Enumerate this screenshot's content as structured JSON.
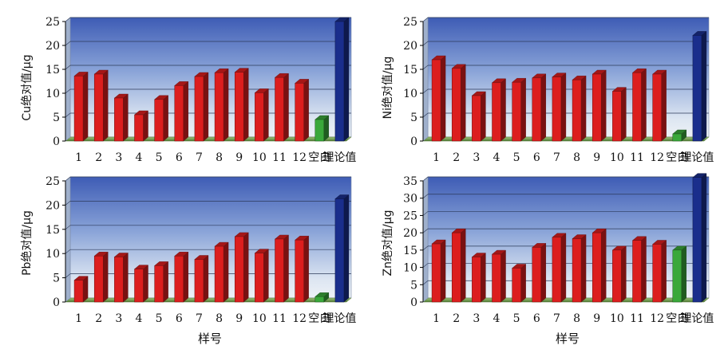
{
  "chart_data": [
    {
      "type": "bar",
      "ylabel": "Cu绝对值/μg",
      "xlabel": "",
      "ylim": [
        0,
        25
      ],
      "yticks": [
        0,
        5,
        10,
        15,
        20,
        25
      ],
      "categories": [
        "1",
        "2",
        "3",
        "4",
        "5",
        "6",
        "7",
        "8",
        "9",
        "10",
        "11",
        "12",
        "空白",
        "理论值"
      ],
      "values": [
        13.6,
        14.0,
        9.0,
        5.5,
        8.7,
        11.6,
        13.5,
        14.3,
        14.4,
        10.1,
        13.3,
        12.1,
        4.5,
        25.0
      ],
      "colors": [
        "#dc1e1e",
        "#dc1e1e",
        "#dc1e1e",
        "#dc1e1e",
        "#dc1e1e",
        "#dc1e1e",
        "#dc1e1e",
        "#dc1e1e",
        "#dc1e1e",
        "#dc1e1e",
        "#dc1e1e",
        "#dc1e1e",
        "#3aa83a",
        "#1a2e8c"
      ]
    },
    {
      "type": "bar",
      "ylabel": "Ni绝对值/μg",
      "xlabel": "",
      "ylim": [
        0,
        25
      ],
      "yticks": [
        0,
        5,
        10,
        15,
        20,
        25
      ],
      "categories": [
        "1",
        "2",
        "3",
        "4",
        "5",
        "6",
        "7",
        "8",
        "9",
        "10",
        "11",
        "12",
        "空白",
        "理论值"
      ],
      "values": [
        17.0,
        15.2,
        9.5,
        12.2,
        12.3,
        13.2,
        13.4,
        12.8,
        14.0,
        10.4,
        14.3,
        14.0,
        1.5,
        22.1
      ],
      "colors": [
        "#dc1e1e",
        "#dc1e1e",
        "#dc1e1e",
        "#dc1e1e",
        "#dc1e1e",
        "#dc1e1e",
        "#dc1e1e",
        "#dc1e1e",
        "#dc1e1e",
        "#dc1e1e",
        "#dc1e1e",
        "#dc1e1e",
        "#3aa83a",
        "#1a2e8c"
      ]
    },
    {
      "type": "bar",
      "ylabel": "Pb绝对值/μg",
      "xlabel": "样号",
      "ylim": [
        0,
        25
      ],
      "yticks": [
        0,
        5,
        10,
        15,
        20,
        25
      ],
      "categories": [
        "1",
        "2",
        "3",
        "4",
        "5",
        "6",
        "7",
        "8",
        "9",
        "10",
        "11",
        "12",
        "空白",
        "理论值"
      ],
      "values": [
        4.5,
        9.5,
        9.3,
        6.8,
        7.5,
        9.5,
        8.8,
        11.5,
        13.5,
        10.1,
        13.0,
        12.8,
        1.1,
        21.3
      ],
      "colors": [
        "#dc1e1e",
        "#dc1e1e",
        "#dc1e1e",
        "#dc1e1e",
        "#dc1e1e",
        "#dc1e1e",
        "#dc1e1e",
        "#dc1e1e",
        "#dc1e1e",
        "#dc1e1e",
        "#dc1e1e",
        "#dc1e1e",
        "#3aa83a",
        "#1a2e8c"
      ]
    },
    {
      "type": "bar",
      "ylabel": "Zn绝对值/μg",
      "xlabel": "样号",
      "ylim": [
        0,
        35
      ],
      "yticks": [
        0,
        5,
        10,
        15,
        20,
        25,
        30,
        35
      ],
      "categories": [
        "1",
        "2",
        "3",
        "4",
        "5",
        "6",
        "7",
        "8",
        "9",
        "10",
        "11",
        "12",
        "空白",
        "理论值"
      ],
      "values": [
        16.8,
        20.0,
        13.0,
        13.8,
        9.8,
        15.8,
        18.7,
        18.3,
        20.0,
        15.0,
        17.8,
        16.7,
        15.0,
        36.0
      ],
      "colors": [
        "#dc1e1e",
        "#dc1e1e",
        "#dc1e1e",
        "#dc1e1e",
        "#dc1e1e",
        "#dc1e1e",
        "#dc1e1e",
        "#dc1e1e",
        "#dc1e1e",
        "#dc1e1e",
        "#dc1e1e",
        "#dc1e1e",
        "#3aa83a",
        "#1a2e8c"
      ]
    }
  ]
}
